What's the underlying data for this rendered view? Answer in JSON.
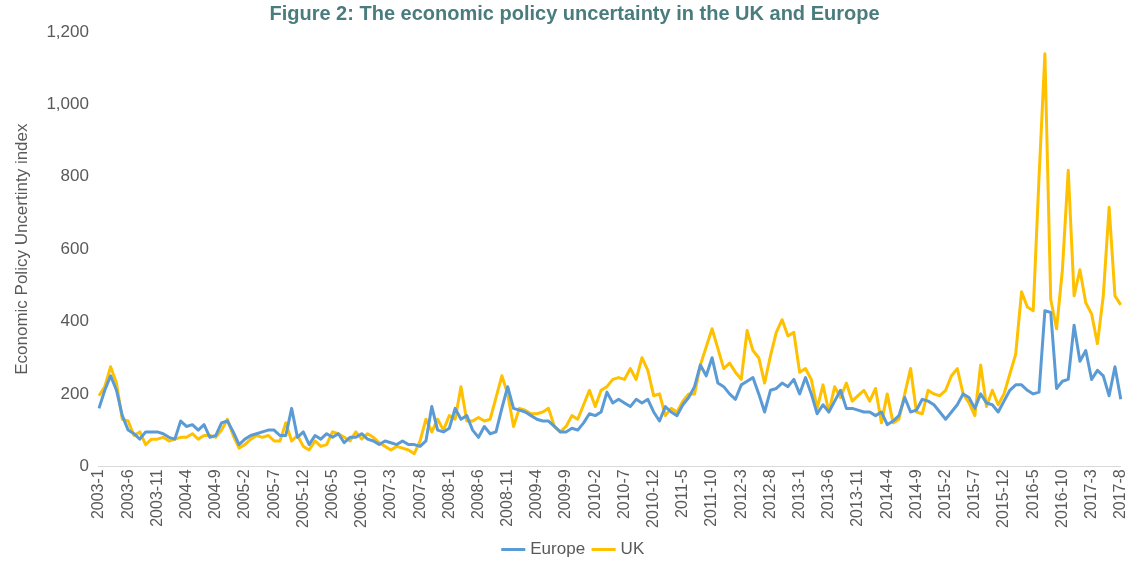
{
  "chart_data": {
    "type": "line",
    "title": "Figure 2: The economic policy uncertainty in the UK and Europe",
    "ylabel": "Economic Policy Uncertinty index",
    "categories": [
      "2003-1",
      null,
      null,
      null,
      null,
      "2003-6",
      null,
      null,
      null,
      null,
      "2003-11",
      null,
      null,
      null,
      null,
      "2004-4",
      null,
      null,
      null,
      null,
      "2004-9",
      null,
      null,
      null,
      null,
      "2005-2",
      null,
      null,
      null,
      null,
      "2005-7",
      null,
      null,
      null,
      null,
      "2005-12",
      null,
      null,
      null,
      null,
      "2006-5",
      null,
      null,
      null,
      null,
      "2006-10",
      null,
      null,
      null,
      null,
      "2007-3",
      null,
      null,
      null,
      null,
      "2007-8",
      null,
      null,
      null,
      null,
      "2008-1",
      null,
      null,
      null,
      null,
      "2008-6",
      null,
      null,
      null,
      null,
      "2008-11",
      null,
      null,
      null,
      null,
      "2009-4",
      null,
      null,
      null,
      null,
      "2009-9",
      null,
      null,
      null,
      null,
      "2010-2",
      null,
      null,
      null,
      null,
      "2010-7",
      null,
      null,
      null,
      null,
      "2010-12",
      null,
      null,
      null,
      null,
      "2011-5",
      null,
      null,
      null,
      null,
      "2011-10",
      null,
      null,
      null,
      null,
      "2012-3",
      null,
      null,
      null,
      null,
      "2012-8",
      null,
      null,
      null,
      null,
      "2013-1",
      null,
      null,
      null,
      null,
      "2013-6",
      null,
      null,
      null,
      null,
      "2013-11",
      null,
      null,
      null,
      null,
      "2014-4",
      null,
      null,
      null,
      null,
      "2014-9",
      null,
      null,
      null,
      null,
      "2015-2",
      null,
      null,
      null,
      null,
      "2015-7",
      null,
      null,
      null,
      null,
      "2015-12",
      null,
      null,
      null,
      null,
      "2016-5",
      null,
      null,
      null,
      null,
      "2016-10",
      null,
      null,
      null,
      null,
      "2017-3",
      null,
      null,
      null,
      null,
      "2017-8"
    ],
    "series": [
      {
        "name": "Europe",
        "color": "#5b9bd5",
        "values": [
          160,
          210,
          250,
          210,
          140,
          100,
          90,
          75,
          95,
          95,
          95,
          90,
          80,
          75,
          125,
          110,
          115,
          100,
          115,
          80,
          85,
          120,
          125,
          95,
          60,
          75,
          85,
          90,
          95,
          100,
          100,
          85,
          85,
          160,
          80,
          95,
          60,
          85,
          75,
          90,
          80,
          90,
          65,
          80,
          80,
          90,
          75,
          70,
          60,
          70,
          65,
          60,
          70,
          60,
          60,
          55,
          70,
          165,
          100,
          95,
          105,
          160,
          130,
          140,
          100,
          80,
          110,
          90,
          95,
          160,
          220,
          160,
          155,
          150,
          140,
          130,
          125,
          125,
          110,
          95,
          95,
          105,
          100,
          120,
          145,
          140,
          150,
          205,
          175,
          185,
          175,
          165,
          185,
          175,
          185,
          150,
          125,
          165,
          150,
          140,
          170,
          190,
          220,
          280,
          250,
          300,
          230,
          220,
          200,
          185,
          225,
          235,
          245,
          200,
          150,
          210,
          215,
          230,
          220,
          240,
          200,
          245,
          200,
          145,
          170,
          150,
          180,
          210,
          160,
          160,
          155,
          150,
          150,
          140,
          150,
          115,
          125,
          140,
          190,
          150,
          155,
          185,
          180,
          170,
          150,
          130,
          150,
          170,
          200,
          190,
          160,
          200,
          175,
          170,
          150,
          180,
          210,
          225,
          225,
          210,
          200,
          205,
          430,
          425,
          215,
          235,
          240,
          390,
          290,
          320,
          240,
          265,
          250,
          195,
          275,
          185
        ]
      },
      {
        "name": "UK",
        "color": "#ffc000",
        "values": [
          195,
          220,
          275,
          230,
          130,
          125,
          85,
          95,
          60,
          75,
          75,
          80,
          70,
          75,
          80,
          80,
          90,
          75,
          85,
          85,
          80,
          100,
          130,
          85,
          50,
          60,
          75,
          85,
          80,
          85,
          70,
          70,
          120,
          70,
          85,
          55,
          45,
          70,
          55,
          60,
          95,
          90,
          80,
          70,
          95,
          75,
          90,
          80,
          65,
          55,
          45,
          55,
          50,
          45,
          35,
          70,
          130,
          95,
          130,
          100,
          140,
          130,
          220,
          125,
          125,
          135,
          125,
          130,
          190,
          250,
          200,
          110,
          160,
          155,
          145,
          145,
          150,
          160,
          110,
          95,
          110,
          140,
          130,
          170,
          210,
          165,
          210,
          220,
          240,
          245,
          240,
          270,
          240,
          300,
          265,
          195,
          200,
          140,
          160,
          150,
          180,
          200,
          200,
          280,
          330,
          380,
          325,
          270,
          285,
          260,
          240,
          375,
          320,
          300,
          230,
          305,
          370,
          405,
          360,
          370,
          260,
          270,
          240,
          160,
          225,
          150,
          220,
          190,
          230,
          180,
          195,
          210,
          180,
          215,
          120,
          200,
          120,
          130,
          200,
          270,
          150,
          145,
          210,
          200,
          195,
          210,
          250,
          270,
          200,
          175,
          140,
          280,
          165,
          210,
          170,
          200,
          255,
          310,
          482,
          440,
          430,
          800,
          1140,
          461,
          380,
          543,
          818,
          471,
          543,
          452,
          421,
          339,
          471,
          716,
          471,
          446
        ]
      }
    ],
    "ylim": [
      0,
      1200
    ],
    "yticks": [
      0,
      200,
      400,
      600,
      800,
      {
        "value": 1000,
        "label": "1,000"
      },
      {
        "value": 1200,
        "label": "1,200"
      }
    ],
    "legend": "bottom",
    "marker": "none",
    "line_style": "solid"
  }
}
